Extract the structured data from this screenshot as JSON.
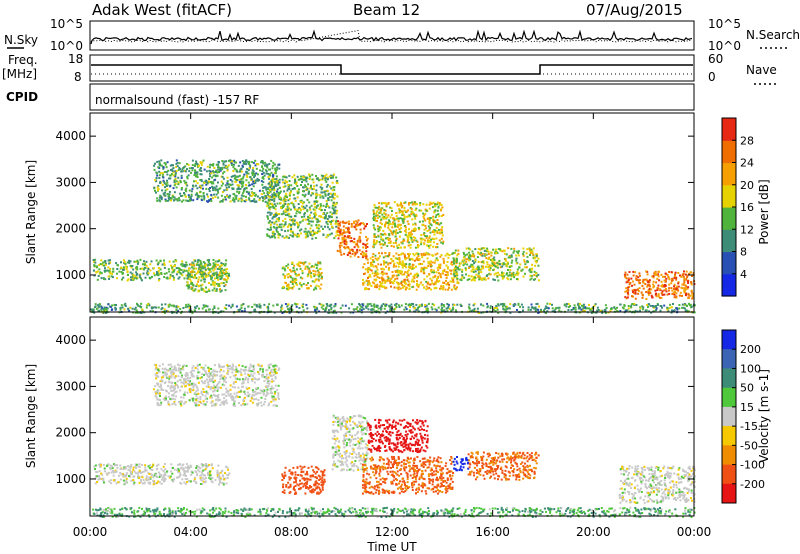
{
  "header": {
    "station": "Adak West (fitACF)",
    "beam": "Beam 12",
    "date": "07/Aug/2015"
  },
  "top_panels": {
    "nsky_label": "N.Sky",
    "nsearch_label": "N.Search",
    "noise_ticks": [
      "10^5",
      "10^0"
    ],
    "freq_label_1": "Freq.",
    "freq_label_2": "[MHz]",
    "freq_ticks": [
      "18",
      "8"
    ],
    "nave_label": "Nave",
    "nave_ticks": [
      "60",
      "0"
    ],
    "cpid_label": "CPID",
    "cpid_text": "normalsound (fast) -157 RF"
  },
  "chart_data": [
    {
      "type": "heatmap",
      "title": "",
      "quantity": "Power",
      "ylabel": "Slant Range [km]",
      "xlabel": "Time UT",
      "ylim": [
        200,
        4500
      ],
      "xlim_hours": [
        0,
        24
      ],
      "x_ticks": [
        "00:00",
        "04:00",
        "08:00",
        "12:00",
        "16:00",
        "20:00",
        "00:00"
      ],
      "y_ticks": [
        1000,
        2000,
        3000,
        4000
      ],
      "colorbar": {
        "label": "Power [dB]",
        "ticks": [
          4,
          8,
          12,
          16,
          20,
          24,
          28
        ],
        "range": [
          0,
          32
        ],
        "colors": [
          "#1428e6",
          "#2850b4",
          "#3c8c78",
          "#50b43c",
          "#e6d200",
          "#f5a000",
          "#f06e00",
          "#e62814"
        ]
      },
      "regions": [
        {
          "t": [
            0.1,
            5.5
          ],
          "r": [
            900,
            1350
          ],
          "level": 14
        },
        {
          "t": [
            3.8,
            5.4
          ],
          "r": [
            650,
            1250
          ],
          "level": 16
        },
        {
          "t": [
            2.5,
            7.5
          ],
          "r": [
            2600,
            3500
          ],
          "level": 12
        },
        {
          "t": [
            7.0,
            9.8
          ],
          "r": [
            1800,
            3200
          ],
          "level": 14
        },
        {
          "t": [
            7.6,
            9.2
          ],
          "r": [
            700,
            1300
          ],
          "level": 18
        },
        {
          "t": [
            9.8,
            11.0
          ],
          "r": [
            1400,
            2200
          ],
          "level": 26
        },
        {
          "t": [
            10.8,
            14.6
          ],
          "r": [
            700,
            1500
          ],
          "level": 20
        },
        {
          "t": [
            11.2,
            14.0
          ],
          "r": [
            1600,
            2600
          ],
          "level": 18
        },
        {
          "t": [
            14.4,
            17.8
          ],
          "r": [
            900,
            1600
          ],
          "level": 16
        },
        {
          "t": [
            21.2,
            24.0
          ],
          "r": [
            500,
            1100
          ],
          "level": 26
        },
        {
          "t": [
            0.0,
            24.0
          ],
          "r": [
            200,
            400
          ],
          "level": 12
        }
      ]
    },
    {
      "type": "heatmap",
      "title": "",
      "quantity": "Velocity",
      "ylabel": "Slant Range [km]",
      "xlabel": "Time UT",
      "ylim": [
        200,
        4500
      ],
      "xlim_hours": [
        0,
        24
      ],
      "x_ticks": [
        "00:00",
        "04:00",
        "08:00",
        "12:00",
        "16:00",
        "20:00",
        "00:00"
      ],
      "y_ticks": [
        1000,
        2000,
        3000,
        4000
      ],
      "colorbar": {
        "label": "Velocity [m s-1]",
        "ticks": [
          200,
          100,
          50,
          15,
          -15,
          -50,
          -100,
          -200
        ],
        "colors": [
          "#1428e6",
          "#3c64b4",
          "#3c8c78",
          "#50c83c",
          "#c8c8c8",
          "#f5c800",
          "#f08c00",
          "#f05014",
          "#e61414"
        ]
      },
      "regions": [
        {
          "t": [
            0.1,
            5.5
          ],
          "r": [
            900,
            1350
          ],
          "velocity": 0
        },
        {
          "t": [
            2.5,
            7.5
          ],
          "r": [
            2600,
            3500
          ],
          "velocity": 0
        },
        {
          "t": [
            7.6,
            9.3
          ],
          "r": [
            700,
            1300
          ],
          "velocity": -100
        },
        {
          "t": [
            9.6,
            11.0
          ],
          "r": [
            1200,
            2400
          ],
          "velocity": 0
        },
        {
          "t": [
            11.0,
            13.4
          ],
          "r": [
            1600,
            2300
          ],
          "velocity": -220
        },
        {
          "t": [
            10.8,
            14.4
          ],
          "r": [
            700,
            1500
          ],
          "velocity": -80
        },
        {
          "t": [
            14.4,
            15.0
          ],
          "r": [
            1200,
            1500
          ],
          "velocity": 200
        },
        {
          "t": [
            15.0,
            17.8
          ],
          "r": [
            1000,
            1600
          ],
          "velocity": -80
        },
        {
          "t": [
            21.0,
            24.0
          ],
          "r": [
            500,
            1300
          ],
          "velocity": 0
        },
        {
          "t": [
            0.0,
            24.0
          ],
          "r": [
            200,
            400
          ],
          "velocity": 30
        }
      ]
    }
  ]
}
